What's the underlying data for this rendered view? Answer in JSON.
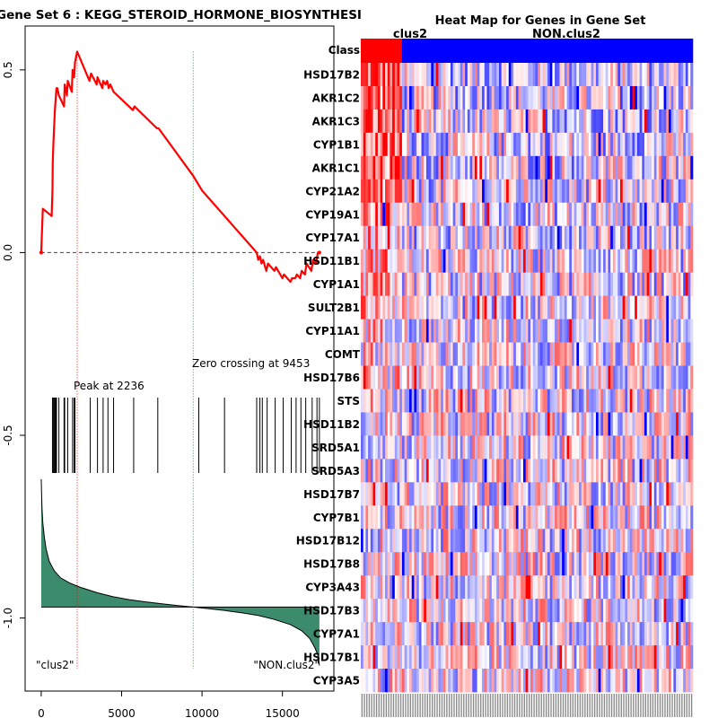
{
  "chart_data": [
    {
      "type": "line",
      "title": "Gene Set 6 : KEGG_STEROID_HORMONE_BIOSYNTHESI",
      "xlim": [
        -1000,
        18200
      ],
      "ylim": [
        -1.2,
        0.62
      ],
      "x_ticks": [
        0,
        5000,
        10000,
        15000
      ],
      "x_tick_labels": [
        "0",
        "5000",
        "10000",
        "15000"
      ],
      "y_ticks": [
        0.5,
        0.0,
        -0.5,
        -1.0
      ],
      "y_tick_labels": [
        "0.5",
        "0.0",
        "-0.5",
        "-1.0"
      ],
      "enrichment_score": {
        "x": [
          0,
          100,
          650,
          700,
          720,
          760,
          800,
          850,
          900,
          950,
          1000,
          1050,
          1100,
          1420,
          1460,
          1600,
          1650,
          1900,
          1950,
          2050,
          2100,
          2236,
          3000,
          3100,
          3450,
          3500,
          3800,
          3850,
          4000,
          4100,
          4200,
          4300,
          4500,
          5700,
          5800,
          7200,
          7300,
          9453,
          10000,
          12000,
          13000,
          13400,
          13500,
          13600,
          13700,
          13800,
          14000,
          14100,
          14500,
          14600,
          15000,
          15100,
          15500,
          15600,
          15800,
          15900,
          16100,
          16200,
          16400,
          16500,
          16800,
          16900,
          17100,
          17200,
          17300
        ],
        "y": [
          0.0,
          0.12,
          0.1,
          0.17,
          0.25,
          0.3,
          0.34,
          0.39,
          0.42,
          0.45,
          0.45,
          0.44,
          0.43,
          0.4,
          0.46,
          0.43,
          0.47,
          0.44,
          0.5,
          0.48,
          0.52,
          0.55,
          0.47,
          0.49,
          0.46,
          0.48,
          0.45,
          0.47,
          0.46,
          0.47,
          0.45,
          0.46,
          0.44,
          0.39,
          0.4,
          0.34,
          0.34,
          0.21,
          0.17,
          0.07,
          0.02,
          0.0,
          -0.02,
          -0.01,
          -0.03,
          -0.02,
          -0.05,
          -0.03,
          -0.05,
          -0.04,
          -0.07,
          -0.06,
          -0.08,
          -0.07,
          -0.07,
          -0.06,
          -0.07,
          -0.05,
          -0.06,
          -0.03,
          -0.05,
          -0.02,
          -0.03,
          0.0,
          0.0
        ]
      },
      "peak": {
        "x": 2236,
        "label": "Peak at 2236"
      },
      "zero_crossing": {
        "x": 9453,
        "label": "Zero crossing at 9453"
      },
      "hit_positions": [
        700,
        750,
        800,
        850,
        900,
        950,
        1100,
        1420,
        1460,
        1650,
        1950,
        2050,
        2100,
        3050,
        3500,
        3850,
        4150,
        4500,
        5750,
        7250,
        9800,
        11400,
        13400,
        13600,
        13750,
        14050,
        14550,
        15050,
        15550,
        15850,
        16150,
        16450,
        16850,
        17150,
        17300
      ],
      "ranked_metric": {
        "x": [
          0,
          50,
          100,
          200,
          300,
          500,
          800,
          1200,
          1800,
          2500,
          3500,
          4500,
          5500,
          6500,
          7500,
          8500,
          9453,
          10500,
          11500,
          12500,
          13500,
          14500,
          15500,
          16200,
          16700,
          17000,
          17200,
          17300
        ],
        "y": [
          -0.62,
          -0.7,
          -0.74,
          -0.78,
          -0.81,
          -0.845,
          -0.87,
          -0.89,
          -0.905,
          -0.917,
          -0.931,
          -0.942,
          -0.95,
          -0.956,
          -0.961,
          -0.966,
          -0.97,
          -0.975,
          -0.98,
          -0.986,
          -0.993,
          -1.004,
          -1.018,
          -1.035,
          -1.056,
          -1.08,
          -1.1,
          -1.13
        ]
      },
      "baseline_metric": -0.97,
      "labels": {
        "left": "\"clus2\"",
        "right": "\"NON.clus2\""
      }
    },
    {
      "type": "heatmap",
      "title": "Heat Map for Genes in Gene Set",
      "class_row_label": "Class",
      "groups": [
        {
          "name": "clus2",
          "count": 17,
          "color": "#ff0000"
        },
        {
          "name": "NON.clus2",
          "count": 120,
          "color": "#0000ff"
        }
      ],
      "genes": [
        "HSD17B2",
        "AKR1C2",
        "AKR1C3",
        "CYP1B1",
        "AKR1C1",
        "CYP21A2",
        "CYP19A1",
        "CYP17A1",
        "HSD11B1",
        "CYP1A1",
        "SULT2B1",
        "CYP11A1",
        "COMT",
        "HSD17B6",
        "STS",
        "HSD11B2",
        "SRD5A1",
        "SRD5A3",
        "HSD17B7",
        "CYP7B1",
        "HSD17B12",
        "HSD17B8",
        "CYP3A43",
        "HSD17B3",
        "CYP7A1",
        "HSD17B1",
        "CYP3A5"
      ],
      "colors": {
        "high": "#ff0000",
        "mid": "#ffffff",
        "low": "#0000ff"
      }
    }
  ]
}
